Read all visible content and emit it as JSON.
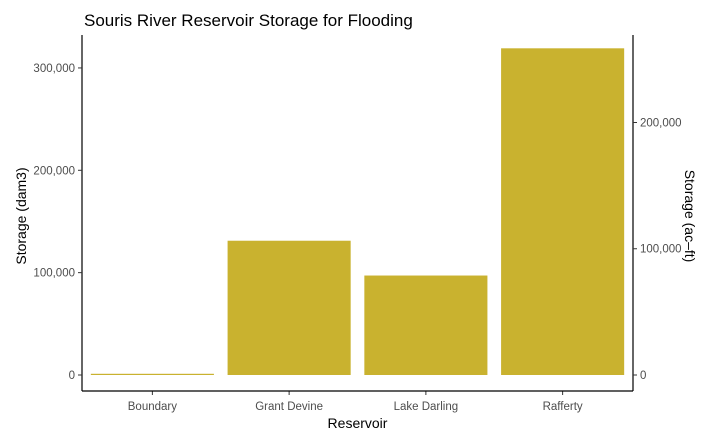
{
  "chart_data": {
    "type": "bar",
    "title": "Souris River Reservoir Storage for Flooding",
    "xlabel": "Reservoir",
    "ylabel": "Storage (dam3)",
    "y2label": "Storage (ac–ft)",
    "categories": [
      "Boundary",
      "Grant Devine",
      "Lake Darling",
      "Rafferty"
    ],
    "values": [
      9000,
      139000,
      105000,
      327000
    ],
    "ylim": [
      0,
      340000
    ],
    "y_ticks": [
      0,
      100000,
      200000,
      300000
    ],
    "y_tick_labels": [
      "0",
      "100,000",
      "200,000",
      "300,000"
    ],
    "y2_ticks": [
      0,
      100000,
      200000
    ],
    "y2_tick_labels": [
      "0",
      "100,000",
      "200,000"
    ],
    "y2_unit_per_y": 0.8107,
    "grid": false,
    "legend": "none",
    "bar_color": "#c9b22f"
  }
}
